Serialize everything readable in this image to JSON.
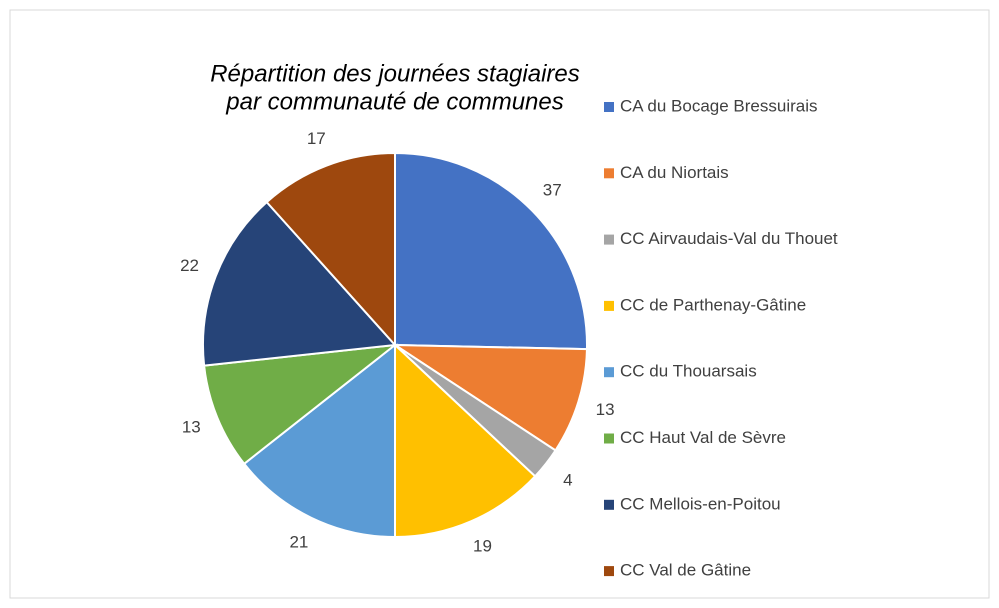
{
  "chart_data": {
    "type": "pie",
    "title": [
      "Répartition des journées stagiaires",
      "par communauté de communes"
    ],
    "categories": [
      "CA du Bocage Bressuirais",
      "CA du Niortais",
      "CC Airvaudais-Val du Thouet",
      "CC de Parthenay-Gâtine",
      "CC du Thouarsais",
      "CC Haut Val de Sèvre",
      "CC Mellois-en-Poitou",
      "CC Val de Gâtine"
    ],
    "values": [
      37,
      13,
      4,
      19,
      21,
      13,
      22,
      17
    ],
    "colors": [
      "#4472c4",
      "#ed7d31",
      "#a5a5a5",
      "#ffc000",
      "#5b9bd5",
      "#70ad47",
      "#264478",
      "#9e480e"
    ],
    "legend": "right"
  }
}
